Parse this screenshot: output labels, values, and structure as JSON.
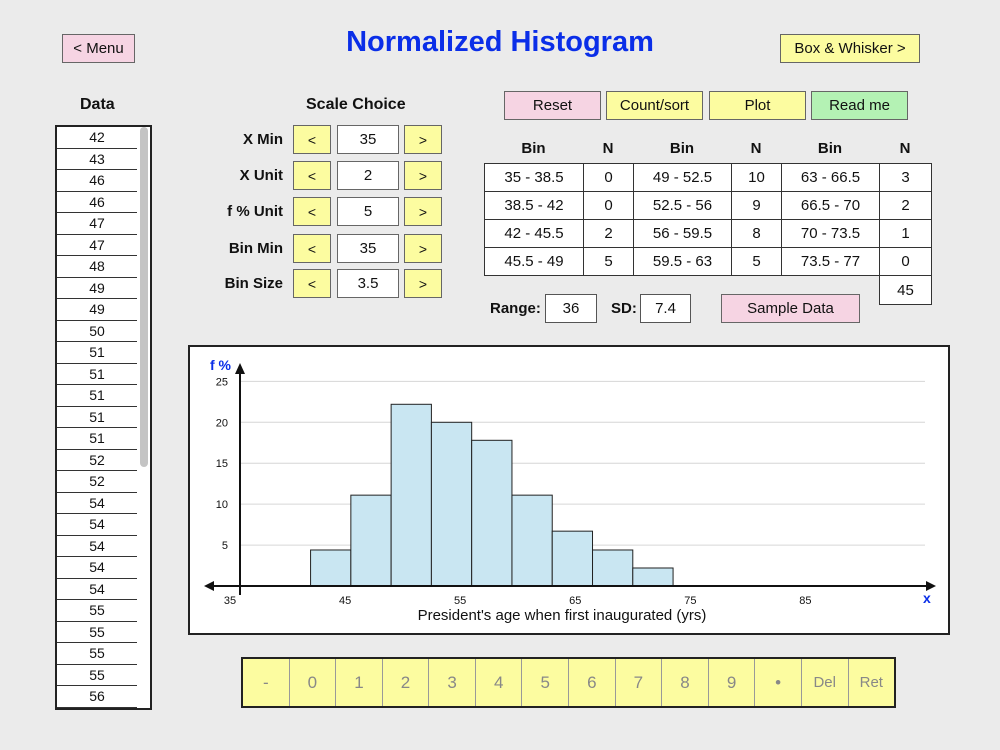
{
  "header": {
    "title": "Normalized Histogram",
    "menu_label": "< Menu",
    "box_whisker_label": "Box & Whisker >"
  },
  "data_panel": {
    "heading": "Data",
    "values": [
      "42",
      "43",
      "46",
      "46",
      "47",
      "47",
      "48",
      "49",
      "49",
      "50",
      "51",
      "51",
      "51",
      "51",
      "51",
      "52",
      "52",
      "54",
      "54",
      "54",
      "54",
      "54",
      "55",
      "55",
      "55",
      "55",
      "56"
    ]
  },
  "scale": {
    "heading": "Scale Choice",
    "decrement_label": "<",
    "increment_label": ">",
    "rows": [
      {
        "label": "X Min",
        "value": "35"
      },
      {
        "label": "X Unit",
        "value": "2"
      },
      {
        "label": "f % Unit",
        "value": "5"
      },
      {
        "label": "Bin Min",
        "value": "35"
      },
      {
        "label": "Bin Size",
        "value": "3.5"
      }
    ]
  },
  "actions": {
    "reset": "Reset",
    "count_sort": "Count/sort",
    "plot": "Plot",
    "read_me": "Read me",
    "sample_data": "Sample Data"
  },
  "bins_table": {
    "bin_header": "Bin",
    "n_header": "N",
    "columns": [
      [
        {
          "bin": "35 - 38.5",
          "n": "0"
        },
        {
          "bin": "38.5 - 42",
          "n": "0"
        },
        {
          "bin": "42 - 45.5",
          "n": "2"
        },
        {
          "bin": "45.5 - 49",
          "n": "5"
        }
      ],
      [
        {
          "bin": "49 - 52.5",
          "n": "10"
        },
        {
          "bin": "52.5 - 56",
          "n": "9"
        },
        {
          "bin": "56 - 59.5",
          "n": "8"
        },
        {
          "bin": "59.5 - 63",
          "n": "5"
        }
      ],
      [
        {
          "bin": "63 - 66.5",
          "n": "3"
        },
        {
          "bin": "66.5 - 70",
          "n": "2"
        },
        {
          "bin": "70 - 73.5",
          "n": "1"
        },
        {
          "bin": "73.5 - 77",
          "n": "0"
        }
      ]
    ],
    "total": "45"
  },
  "stats": {
    "range_label": "Range:",
    "range_value": "36",
    "sd_label": "SD:",
    "sd_value": "7.4"
  },
  "chart_data": {
    "type": "bar",
    "ylabel": "f %",
    "xlabel": "President's age when first inaugurated (yrs)",
    "x_axis_letter": "x",
    "xlim": [
      33,
      96
    ],
    "ylim": [
      0,
      27
    ],
    "x_ticks": [
      35,
      45,
      55,
      65,
      75,
      85
    ],
    "y_ticks": [
      5,
      10,
      15,
      20,
      25
    ],
    "bins": [
      {
        "start": 42,
        "end": 45.5,
        "value": 4.4
      },
      {
        "start": 45.5,
        "end": 49,
        "value": 11.1
      },
      {
        "start": 49,
        "end": 52.5,
        "value": 22.2
      },
      {
        "start": 52.5,
        "end": 56,
        "value": 20.0
      },
      {
        "start": 56,
        "end": 59.5,
        "value": 17.8
      },
      {
        "start": 59.5,
        "end": 63,
        "value": 11.1
      },
      {
        "start": 63,
        "end": 66.5,
        "value": 6.7
      },
      {
        "start": 66.5,
        "end": 70,
        "value": 4.4
      },
      {
        "start": 70,
        "end": 73.5,
        "value": 2.2
      }
    ],
    "bar_color": "#c9e6f2",
    "grid": true
  },
  "keypad": {
    "keys": [
      "-",
      "0",
      "1",
      "2",
      "3",
      "4",
      "5",
      "6",
      "7",
      "8",
      "9",
      "•",
      "Del",
      "Ret"
    ]
  }
}
